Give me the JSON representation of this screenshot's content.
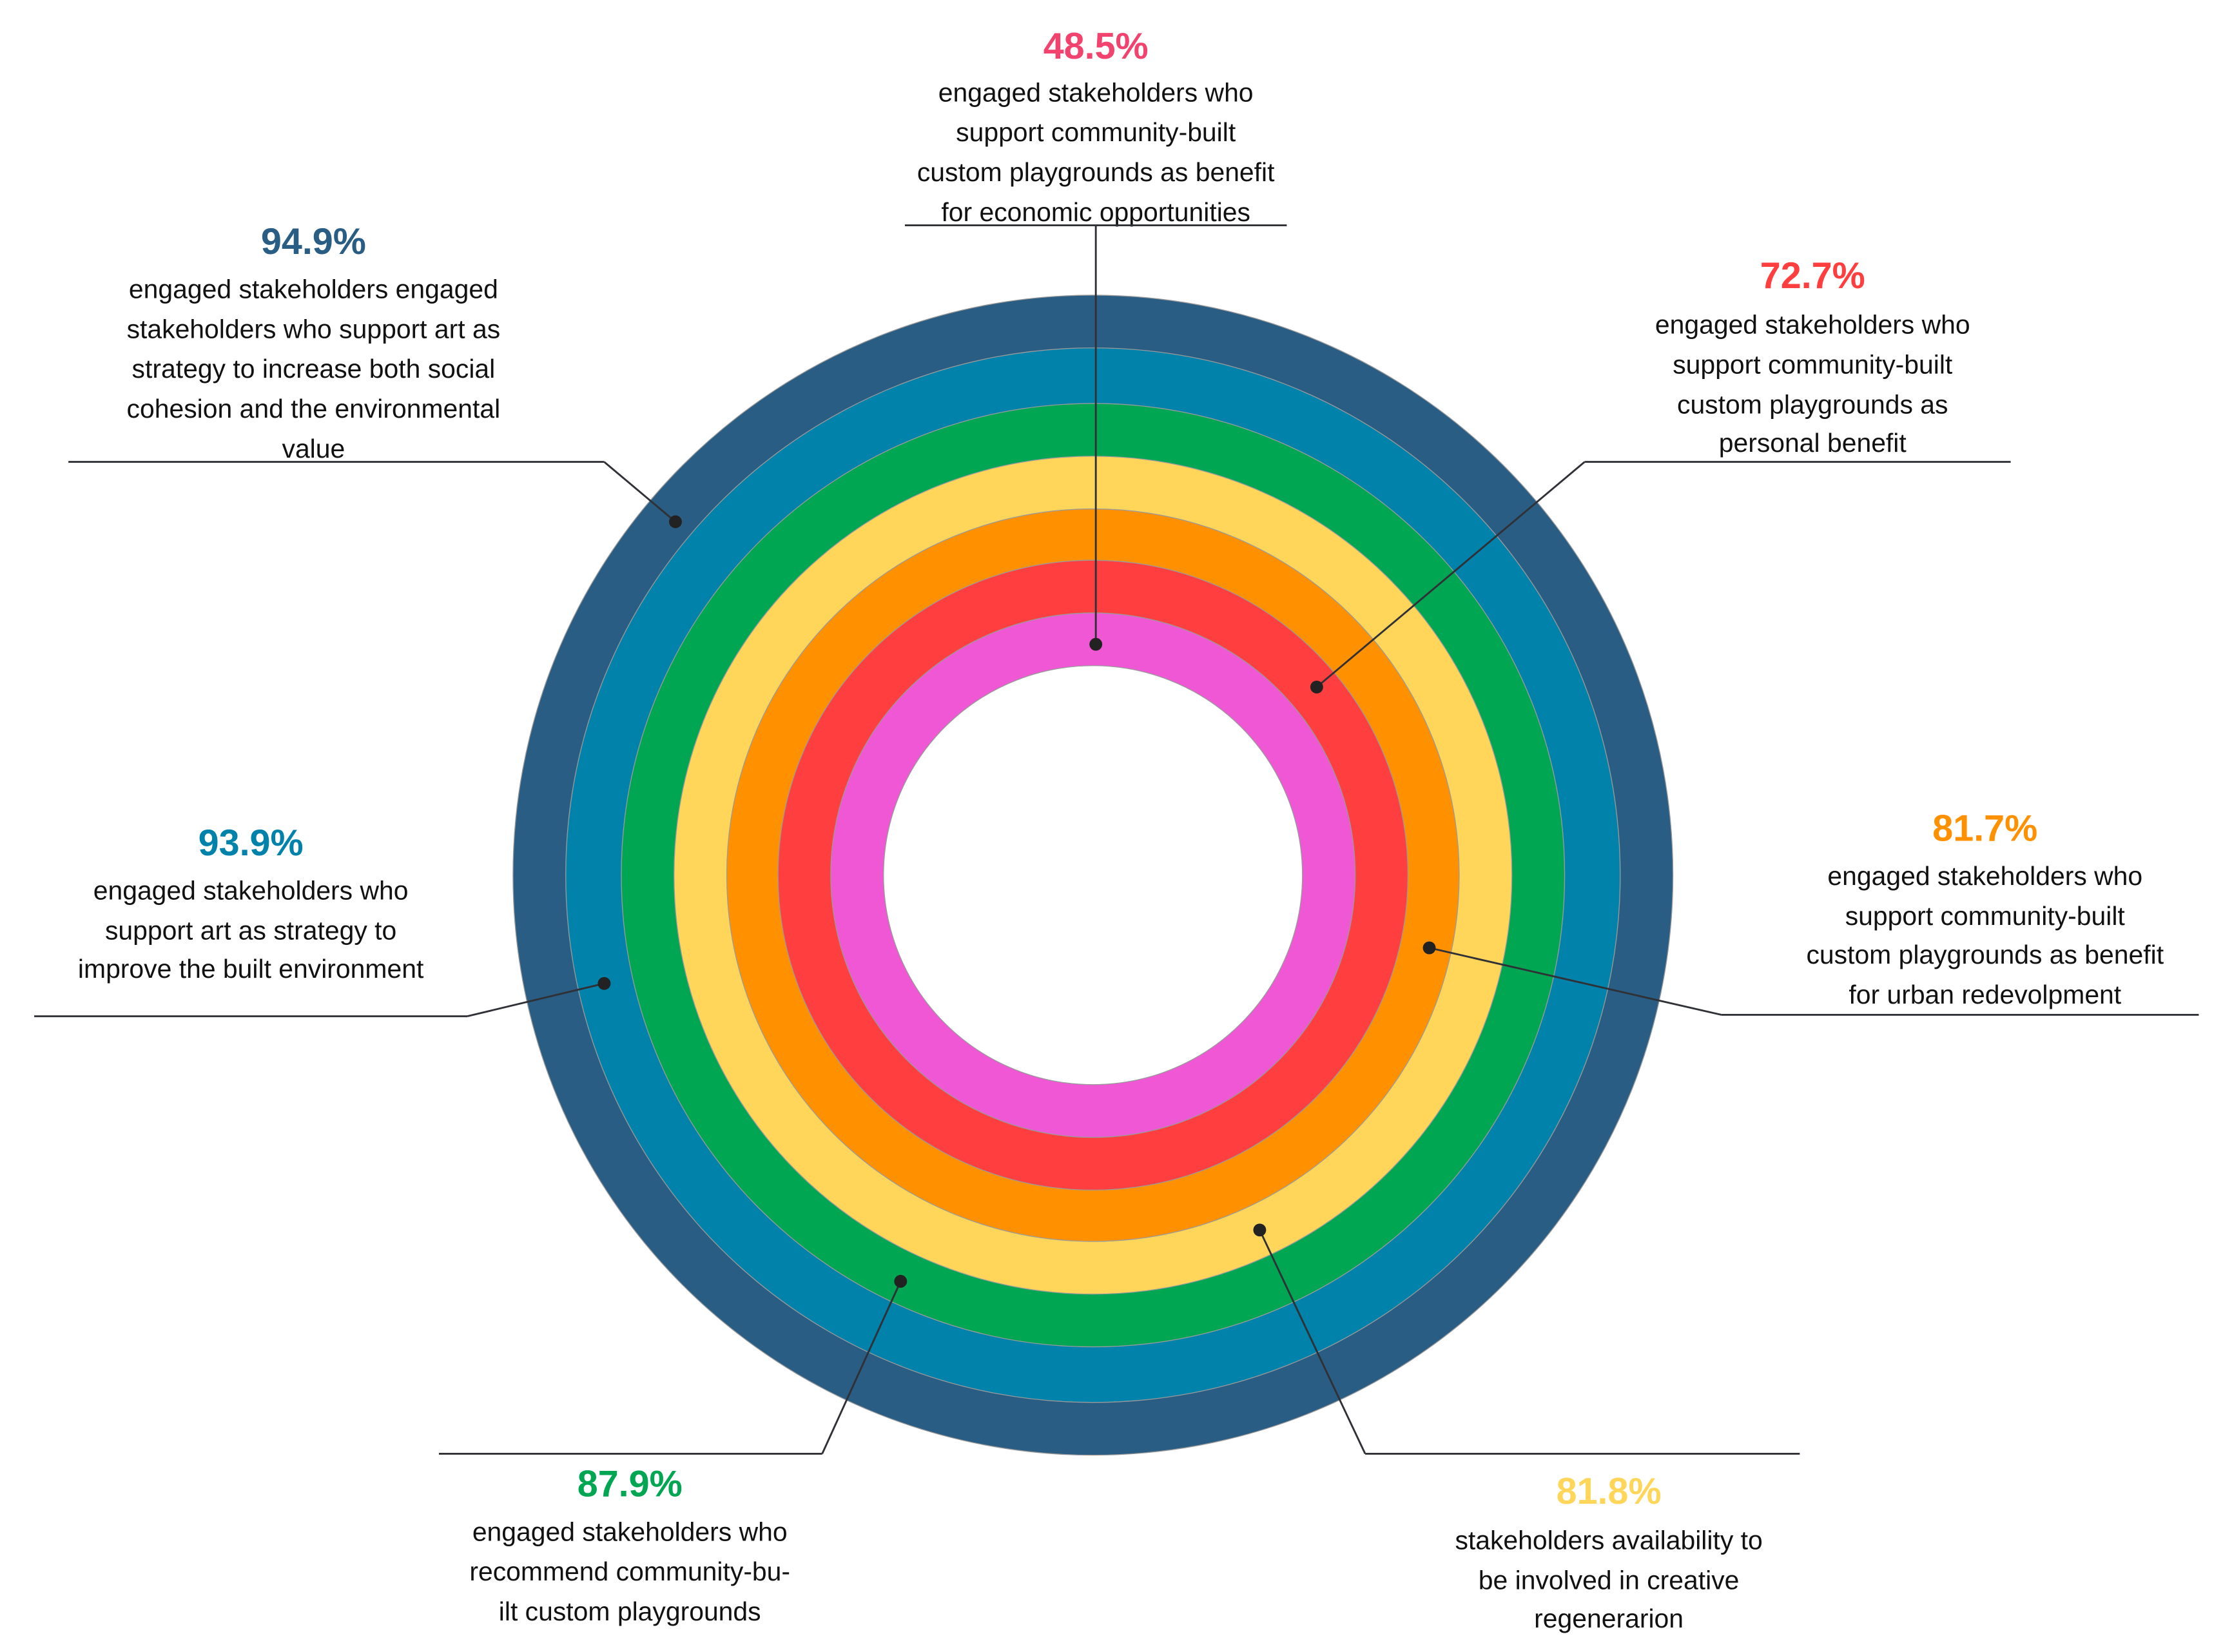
{
  "chart_data": {
    "type": "pie",
    "subtype": "concentric-rings",
    "title": "",
    "series": [
      {
        "name": "art to increase social cohesion and environmental value",
        "value": 94.9,
        "color": "#2a5d84",
        "label": "94.9%",
        "lines": [
          "engaged stakeholders engaged",
          "stakeholders who support art as",
          "strategy to increase both social",
          "cohesion and the environmental",
          "value"
        ]
      },
      {
        "name": "art to improve built environment",
        "value": 93.9,
        "color": "#0082aa",
        "label": "93.9%",
        "lines": [
          "engaged stakeholders who",
          "support art as strategy to",
          "improve the built environment"
        ]
      },
      {
        "name": "recommend community-built playgrounds",
        "value": 87.9,
        "color": "#00a652",
        "label": "87.9%",
        "lines": [
          "engaged stakeholders who",
          "recommend community-bu-",
          "ilt custom playgrounds"
        ]
      },
      {
        "name": "availability for creative regeneration",
        "value": 81.8,
        "color": "#ffd55a",
        "label": "81.8%",
        "lines": [
          "stakeholders availability to",
          "be involved in creative",
          "regenerarion"
        ]
      },
      {
        "name": "playgrounds benefit urban redevelopment",
        "value": 81.7,
        "color": "#ff9100",
        "label": "81.7%",
        "lines": [
          "engaged stakeholders who",
          "support community-built",
          "custom playgrounds as benefit",
          "for urban redevolpment"
        ]
      },
      {
        "name": "playgrounds personal benefit",
        "value": 72.7,
        "color": "#ff3f3f",
        "label": "72.7%",
        "lines": [
          "engaged stakeholders who",
          "support community-built",
          "custom playgrounds as",
          "personal benefit"
        ]
      },
      {
        "name": "playgrounds economic opportunities",
        "value": 48.5,
        "color": "#f057d5",
        "label_color": "#f2436e",
        "label": "48.5%",
        "lines": [
          "engaged stakeholders who",
          "support community-built",
          "custom playgrounds as benefit",
          "for economic opportunities"
        ]
      }
    ]
  }
}
